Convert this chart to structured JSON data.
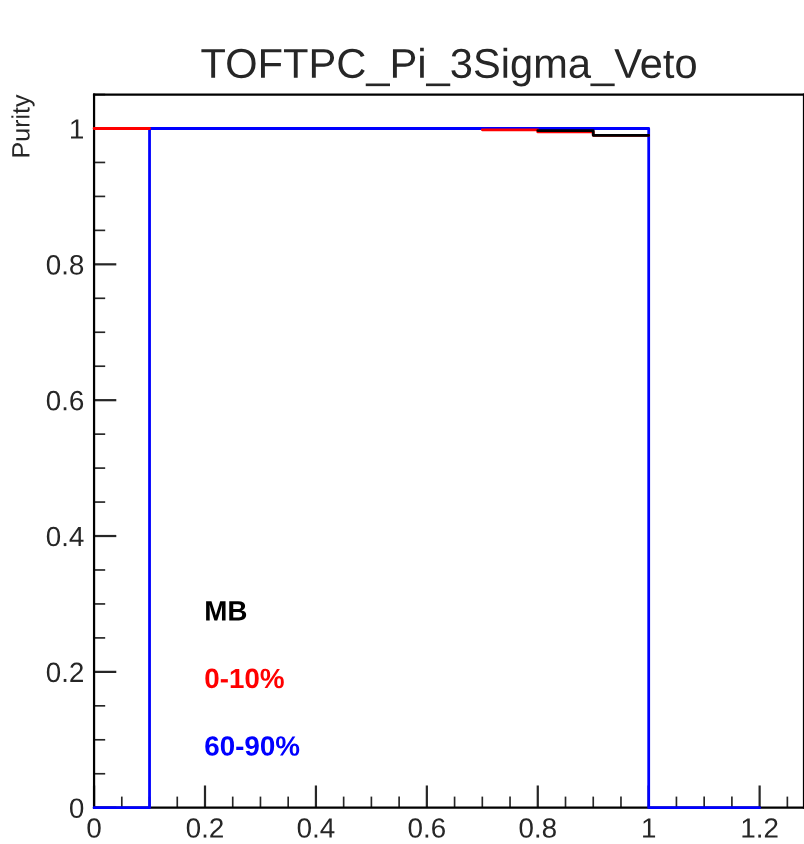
{
  "chart_data": {
    "type": "step",
    "title": "TOFTPC_Pi_3Sigma_Veto",
    "ylabel": "Purity",
    "series": [
      {
        "name": "MB",
        "color": "#000000",
        "x": [
          0.8,
          0.9,
          1.0
        ],
        "values": [
          0.997,
          0.99,
          0.99
        ]
      },
      {
        "name": "0-10%",
        "color": "#ff0000",
        "x": [
          0,
          0.1,
          0.7,
          0.8,
          0.9,
          1.0
        ],
        "values": [
          1,
          null,
          0.998,
          0.995,
          0.99,
          0.99
        ]
      },
      {
        "name": "60-90%",
        "color": "#0000ff",
        "x": [
          0,
          0.1,
          1.0,
          1.2
        ],
        "values": [
          0,
          1,
          0,
          0
        ]
      }
    ],
    "xlim": [
      0,
      1.28
    ],
    "ylim": [
      0,
      1.05
    ],
    "xticks": [
      0,
      0.2,
      0.4,
      0.6,
      0.8,
      1,
      1.2
    ],
    "yticks": [
      0,
      0.2,
      0.4,
      0.6,
      0.8,
      1
    ],
    "grid": false,
    "legend": "bottom left"
  }
}
